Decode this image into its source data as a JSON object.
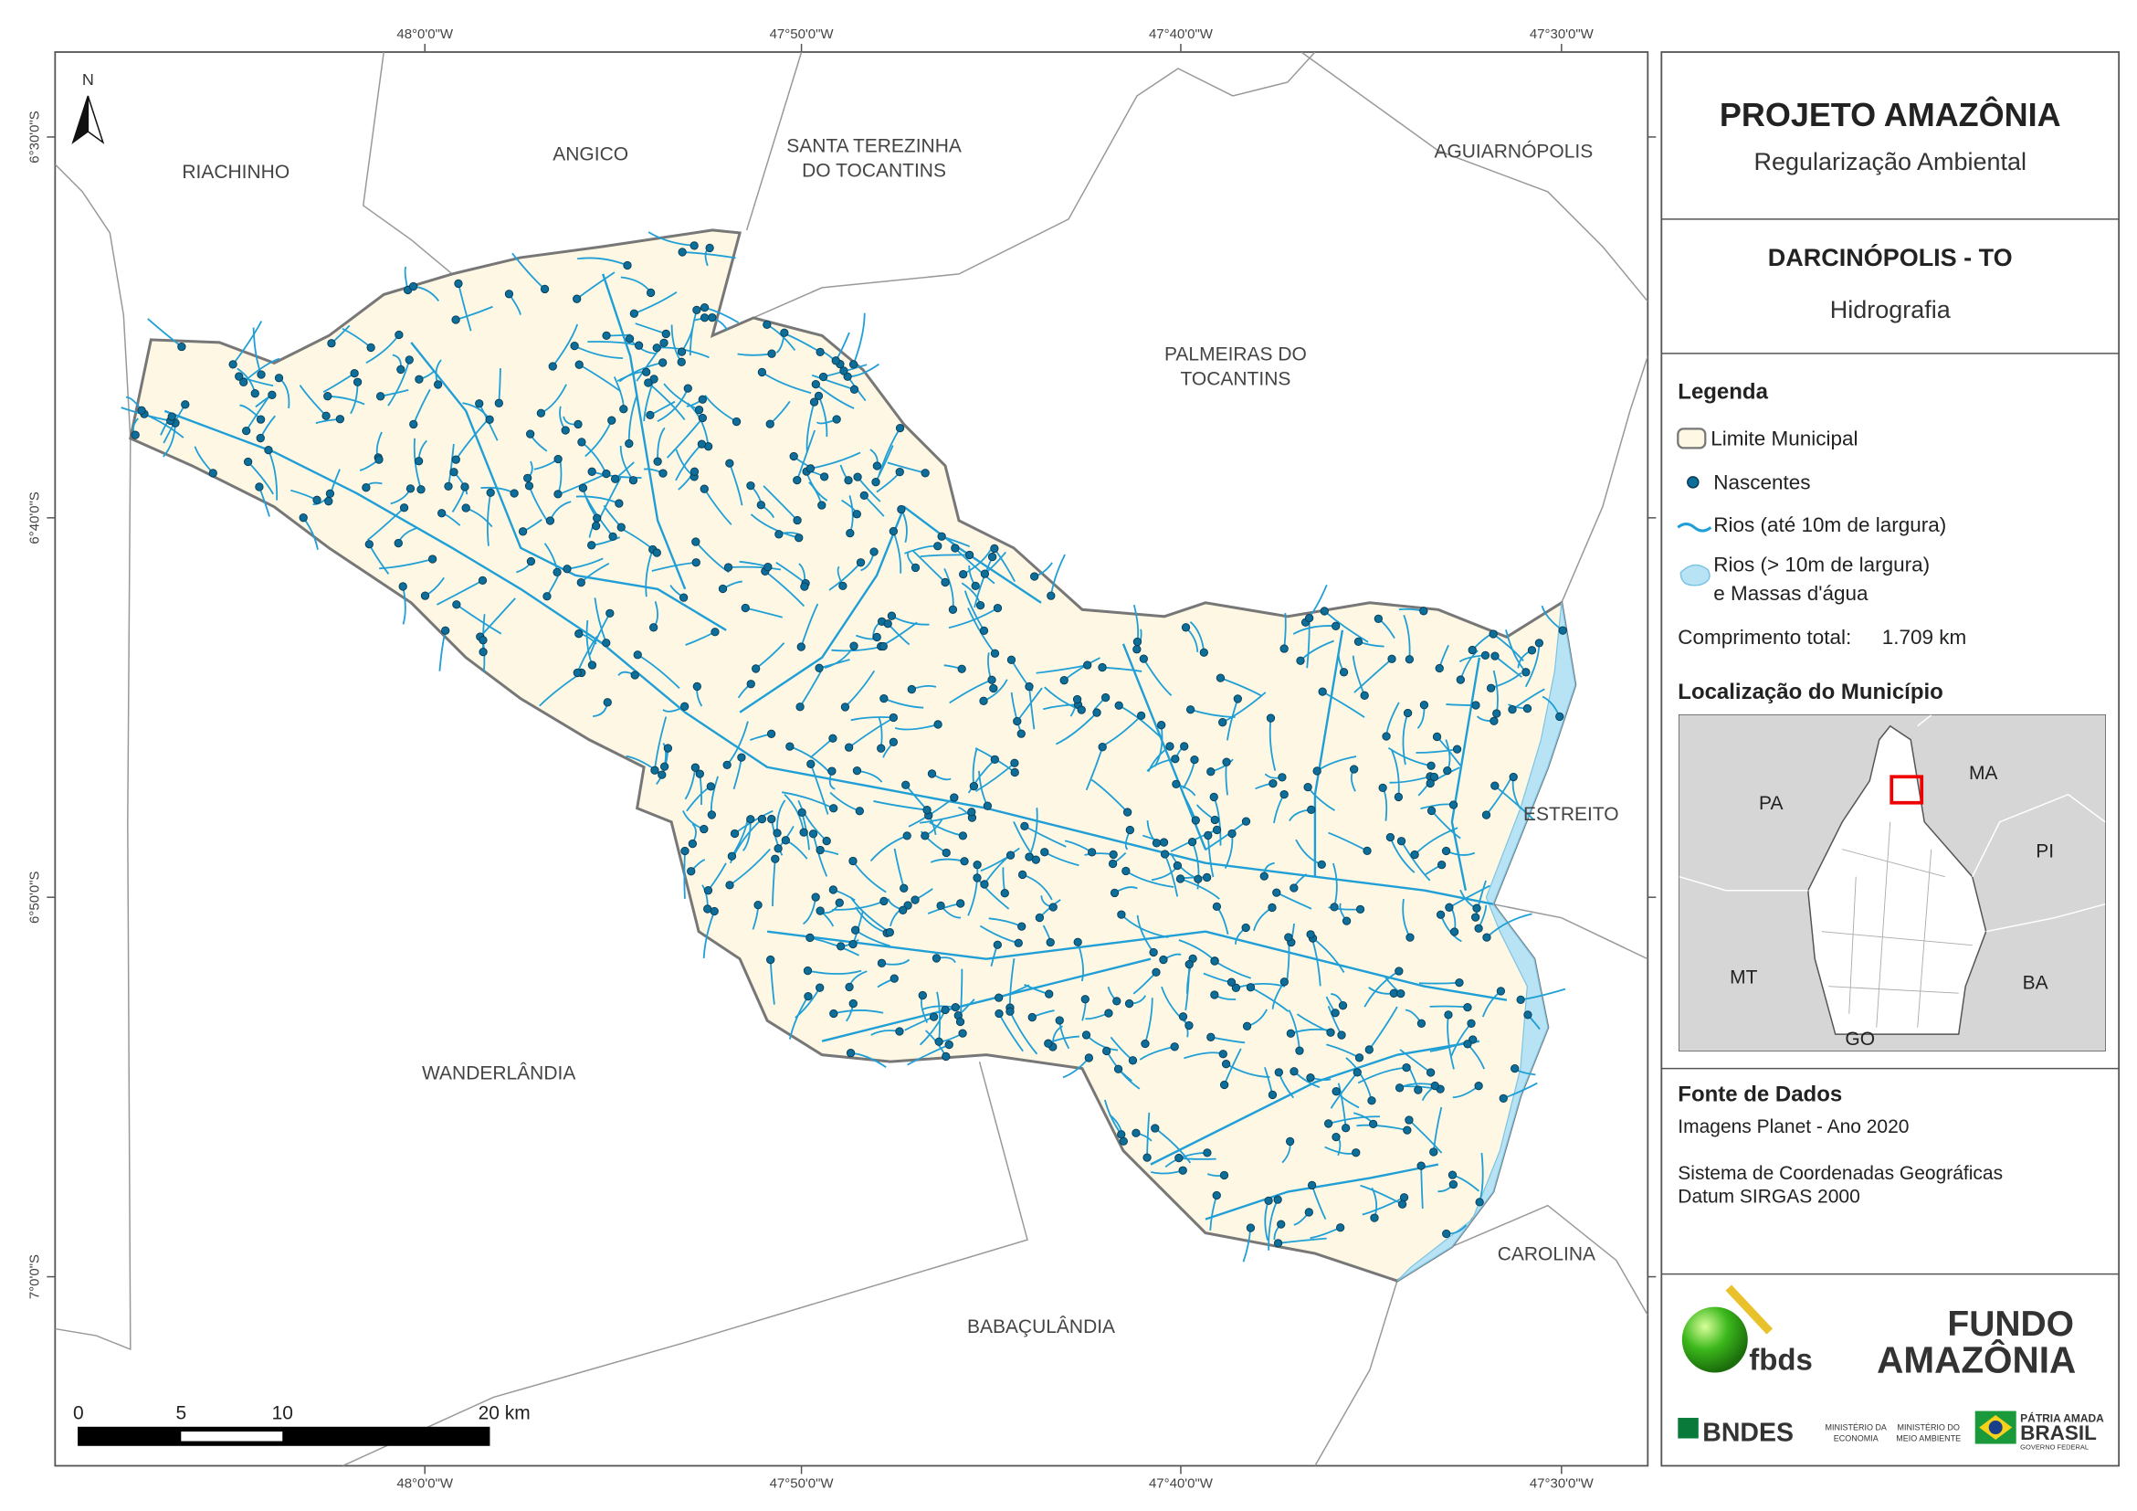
{
  "map": {
    "lon_labels": [
      "48°0'0\"W",
      "47°50'0\"W",
      "47°40'0\"W",
      "47°30'0\"W"
    ],
    "lat_labels": [
      "6°30'0\"S",
      "6°40'0\"S",
      "6°50'0\"S",
      "7°0'0\"S"
    ],
    "north": "N",
    "places": [
      {
        "lines": [
          "RIACHINHO"
        ]
      },
      {
        "lines": [
          "ANGICO"
        ]
      },
      {
        "lines": [
          "SANTA TEREZINHA",
          "DO TOCANTINS"
        ]
      },
      {
        "lines": [
          "AGUIARNÓPOLIS"
        ]
      },
      {
        "lines": [
          "PALMEIRAS DO",
          "TOCANTINS"
        ]
      },
      {
        "lines": [
          "ESTREITO"
        ]
      },
      {
        "lines": [
          "WANDERLÂNDIA"
        ]
      },
      {
        "lines": [
          "CAROLINA"
        ]
      },
      {
        "lines": [
          "BABAÇULÂNDIA"
        ]
      }
    ],
    "scale_labels": [
      "0",
      "5",
      "10",
      "20 km"
    ]
  },
  "header": {
    "title": "PROJETO AMAZÔNIA",
    "subtitle": "Regularização Ambiental"
  },
  "municipality": {
    "name": "DARCINÓPOLIS - TO",
    "theme": "Hidrografia"
  },
  "legend": {
    "title": "Legenda",
    "items": [
      {
        "lines": [
          "Limite Municipal"
        ]
      },
      {
        "lines": [
          "Nascentes"
        ]
      },
      {
        "lines": [
          "Rios (até 10m de largura)"
        ]
      },
      {
        "lines": [
          "Rios (> 10m de largura)",
          "e Massas d'água"
        ]
      }
    ],
    "total_label": "Comprimento total:",
    "total_value": "1.709 km"
  },
  "location": {
    "title": "Localização do Município",
    "states": [
      "PA",
      "MA",
      "PI",
      "MT",
      "BA",
      "GO"
    ]
  },
  "sources": {
    "title": "Fonte de Dados",
    "lines": [
      "Imagens Planet - Ano 2020",
      "Sistema de Coordenadas Geográficas",
      "Datum SIRGAS 2000"
    ]
  },
  "logos": {
    "fbds": "fbds",
    "fundo": [
      "FUNDO",
      "AMAZÔNIA"
    ],
    "bndes": "BNDES",
    "ministerio_economia": [
      "MINISTÉRIO DA",
      "ECONOMIA"
    ],
    "ministerio_ambiente": [
      "MINISTÉRIO DO",
      "MEIO AMBIENTE"
    ],
    "brasil": [
      "PÁTRIA AMADA",
      "BRASIL",
      "GOVERNO FEDERAL"
    ]
  }
}
